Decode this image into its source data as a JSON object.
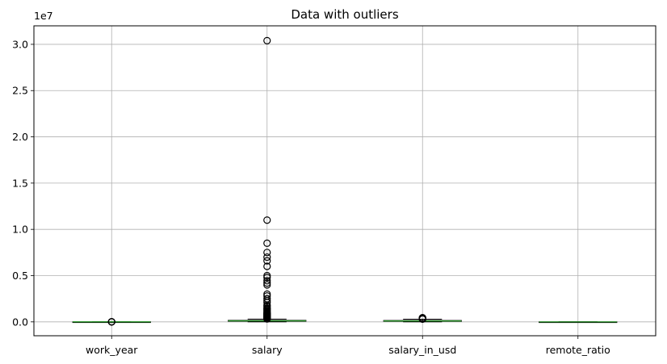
{
  "chart_data": {
    "type": "box",
    "title": "Data with outliers",
    "xlabel": "",
    "ylabel": "",
    "y_offset_text": "1e7",
    "categories": [
      "work_year",
      "salary",
      "salary_in_usd",
      "remote_ratio"
    ],
    "ylim": [
      -1500000,
      32000000
    ],
    "yticks": [
      0,
      5000000,
      10000000,
      15000000,
      20000000,
      25000000,
      30000000
    ],
    "ytick_labels": [
      "0.0",
      "0.5",
      "1.0",
      "1.5",
      "2.0",
      "2.5",
      "3.0"
    ],
    "grid": true,
    "boxes": [
      {
        "name": "work_year",
        "whislo": 2020,
        "q1": 2021,
        "med": 2022,
        "q3": 2022,
        "whishi": 2023,
        "fliers": [
          2020,
          2021,
          2023,
          2023
        ]
      },
      {
        "name": "salary",
        "whislo": 2859,
        "q1": 70000,
        "med": 115000,
        "q3": 165000,
        "whishi": 304000,
        "fliers": [
          30400000,
          11000000,
          8500000,
          7500000,
          7000000,
          6600000,
          6000000,
          5000000,
          4800000,
          4450000,
          4200000,
          4000000,
          3000000,
          2800000,
          2500000,
          2300000,
          2100000,
          1800000,
          1700000,
          1500000,
          1400000,
          1300000,
          1200000,
          1100000,
          1000000,
          950000,
          900000,
          850000,
          800000,
          750000,
          700000,
          650000,
          600000,
          550000,
          500000,
          450000,
          400000,
          350000,
          320000
        ]
      },
      {
        "name": "salary_in_usd",
        "whislo": 5132,
        "q1": 62000,
        "med": 101000,
        "q3": 150000,
        "whishi": 285000,
        "fliers": [
          300000,
          310000,
          324000,
          340000,
          350000,
          375000,
          380000,
          400000,
          405000,
          412000,
          416000,
          423000,
          430000,
          450000
        ]
      },
      {
        "name": "remote_ratio",
        "whislo": 0,
        "q1": 0,
        "med": 50,
        "q3": 100,
        "whishi": 100,
        "fliers": []
      }
    ],
    "colors": {
      "box": "#000000",
      "median": "#2ca02c",
      "grid": "#b0b0b0",
      "flier": "#000000"
    }
  }
}
